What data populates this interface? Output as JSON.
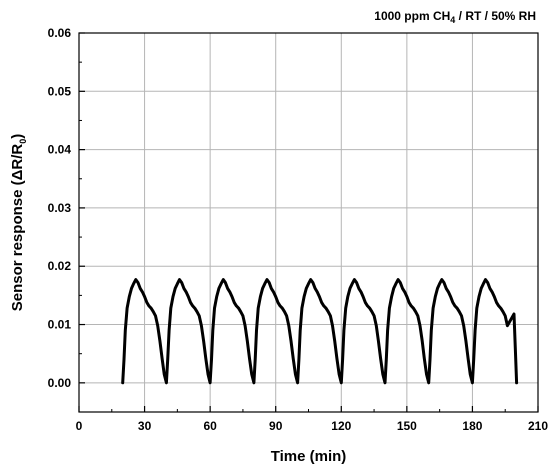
{
  "chart_data": {
    "type": "line",
    "xlabel": "Time (min)",
    "ylabel_main": "Sensor response (",
    "ylabel_delta": "Δ",
    "ylabel_R": "R/R",
    "ylabel_sub": "0",
    "ylabel_close": ")",
    "annotation": {
      "prefix": "1000 ppm CH",
      "sub": "4",
      "suffix": " / RT / 50% RH"
    },
    "xlim": [
      0,
      210
    ],
    "ylim": [
      -0.005,
      0.06
    ],
    "x_ticks": [
      0,
      30,
      60,
      90,
      120,
      150,
      180,
      210
    ],
    "x_tick_labels": [
      "0",
      "30",
      "60",
      "90",
      "120",
      "150",
      "180",
      "210"
    ],
    "y_ticks": [
      0.0,
      0.01,
      0.02,
      0.03,
      0.04,
      0.05,
      0.06
    ],
    "y_tick_labels": [
      "0.00",
      "0.01",
      "0.02",
      "0.03",
      "0.04",
      "0.05",
      "0.06"
    ],
    "grid": true,
    "line_color": "#000000",
    "series": [
      {
        "cycle_starts": [
          20,
          40,
          60,
          80,
          100,
          120,
          140,
          160,
          180
        ],
        "cycle_shape": {
          "t": [
            0,
            0.6,
            1.2,
            2.0,
            3.0,
            4.0,
            5.0,
            6.0,
            7.0,
            8.0,
            9.0,
            10.0,
            11.0,
            12.0,
            13.0,
            14.0,
            15.0,
            16.0,
            17.0,
            18.0,
            19.0,
            20.0
          ],
          "y": [
            0.0,
            0.004,
            0.009,
            0.0128,
            0.0148,
            0.0162,
            0.017,
            0.0177,
            0.0172,
            0.0162,
            0.0156,
            0.0148,
            0.0138,
            0.0132,
            0.0128,
            0.0122,
            0.0115,
            0.0098,
            0.0072,
            0.0042,
            0.0015,
            0.0
          ]
        },
        "final_drop": [
          [
            199.0,
            0.0118
          ],
          [
            199.6,
            0.006
          ],
          [
            200.2,
            0.0
          ]
        ]
      }
    ]
  }
}
